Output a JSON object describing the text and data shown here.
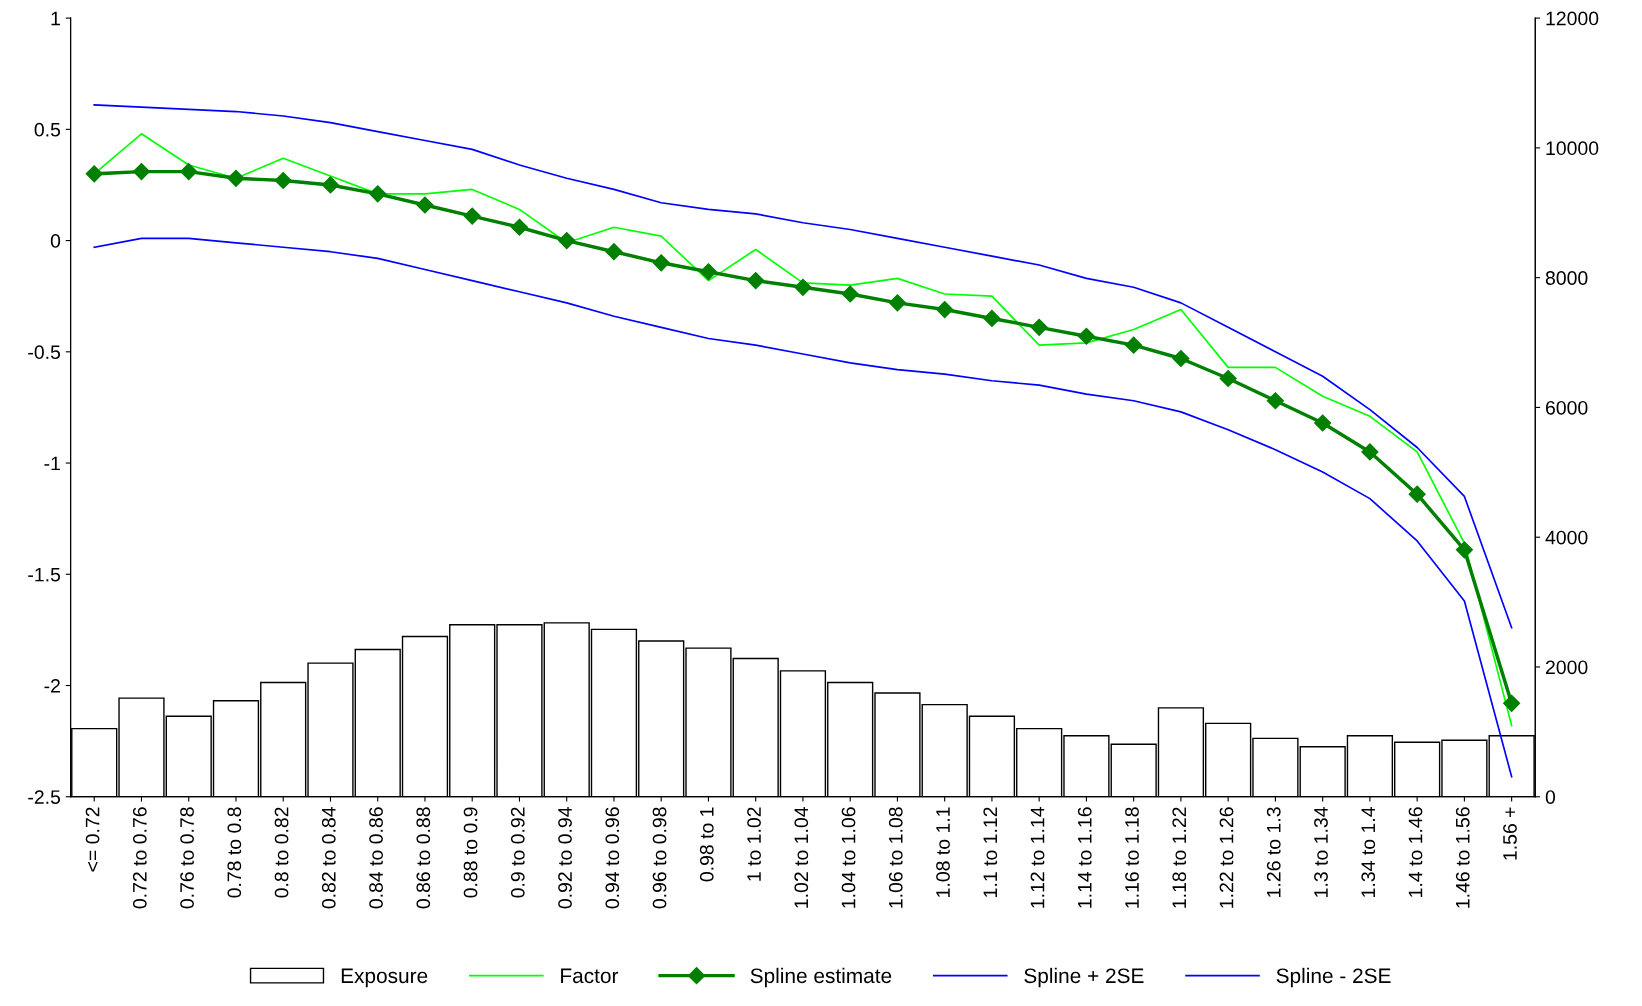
{
  "chart_data": {
    "type": "line",
    "categories": [
      "<= 0.72",
      "0.72 to 0.76",
      "0.76 to 0.78",
      "0.78 to 0.8",
      "0.8 to 0.82",
      "0.82 to 0.84",
      "0.84 to 0.86",
      "0.86 to 0.88",
      "0.88 to 0.9",
      "0.9 to 0.92",
      "0.92 to 0.94",
      "0.94 to 0.96",
      "0.96 to 0.98",
      "0.98 to 1",
      "1 to 1.02",
      "1.02 to 1.04",
      "1.04 to 1.06",
      "1.06 to 1.08",
      "1.08 to 1.1",
      "1.1 to 1.12",
      "1.12 to 1.14",
      "1.14 to 1.16",
      "1.16 to 1.18",
      "1.18 to 1.22",
      "1.22 to 1.26",
      "1.26 to 1.3",
      "1.3 to 1.34",
      "1.34 to 1.4",
      "1.4 to 1.46",
      "1.46 to 1.56",
      "1.56 +"
    ],
    "series": [
      {
        "name": "Exposure",
        "type": "bar",
        "axis": "y2",
        "color": "#ffffff",
        "values": [
          1050,
          1520,
          1240,
          1480,
          1760,
          2060,
          2270,
          2470,
          2650,
          2650,
          2680,
          2580,
          2400,
          2290,
          2130,
          1940,
          1760,
          1600,
          1420,
          1240,
          1050,
          940,
          810,
          1370,
          1130,
          900,
          770,
          940,
          840,
          870,
          940
        ]
      },
      {
        "name": "Factor",
        "color": "#00ff00",
        "marker": "none",
        "values": [
          0.3,
          0.48,
          0.34,
          0.28,
          0.37,
          0.29,
          0.21,
          0.21,
          0.23,
          0.14,
          -0.01,
          0.06,
          0.02,
          -0.18,
          -0.04,
          -0.19,
          -0.2,
          -0.17,
          -0.24,
          -0.25,
          -0.47,
          -0.46,
          -0.4,
          -0.31,
          -0.57,
          -0.57,
          -0.7,
          -0.79,
          -0.95,
          -1.36,
          -2.18
        ]
      },
      {
        "name": "Spline estimate",
        "color": "#008000",
        "marker": "diamond",
        "values": [
          0.3,
          0.31,
          0.31,
          0.28,
          0.27,
          0.25,
          0.21,
          0.16,
          0.11,
          0.06,
          0.0,
          -0.05,
          -0.1,
          -0.14,
          -0.18,
          -0.21,
          -0.24,
          -0.28,
          -0.31,
          -0.35,
          -0.39,
          -0.43,
          -0.47,
          -0.53,
          -0.62,
          -0.72,
          -0.82,
          -0.95,
          -1.14,
          -1.39,
          -2.08
        ]
      },
      {
        "name": "Spline + 2SE",
        "color": "#0000ff",
        "marker": "none",
        "values": [
          0.61,
          0.6,
          0.59,
          0.58,
          0.56,
          0.53,
          0.49,
          0.45,
          0.41,
          0.34,
          0.28,
          0.23,
          0.17,
          0.14,
          0.12,
          0.08,
          0.05,
          0.01,
          -0.03,
          -0.07,
          -0.11,
          -0.17,
          -0.21,
          -0.28,
          -0.39,
          -0.5,
          -0.61,
          -0.76,
          -0.93,
          -1.15,
          -1.74
        ]
      },
      {
        "name": "Spline - 2SE",
        "color": "#0000ff",
        "marker": "none",
        "values": [
          -0.03,
          0.01,
          0.01,
          -0.01,
          -0.03,
          -0.05,
          -0.08,
          -0.13,
          -0.18,
          -0.23,
          -0.28,
          -0.34,
          -0.39,
          -0.44,
          -0.47,
          -0.51,
          -0.55,
          -0.58,
          -0.6,
          -0.63,
          -0.65,
          -0.69,
          -0.72,
          -0.77,
          -0.85,
          -0.94,
          -1.04,
          -1.16,
          -1.35,
          -1.62,
          -2.41
        ]
      }
    ],
    "ylim": [
      -2.5,
      1
    ],
    "yticks": [
      -2.5,
      -2,
      -1.5,
      -1,
      -0.5,
      0,
      0.5,
      1
    ],
    "y2lim": [
      0,
      12000
    ],
    "y2ticks": [
      0,
      2000,
      4000,
      6000,
      8000,
      10000,
      12000
    ],
    "legend": "bottom",
    "grid": false
  }
}
